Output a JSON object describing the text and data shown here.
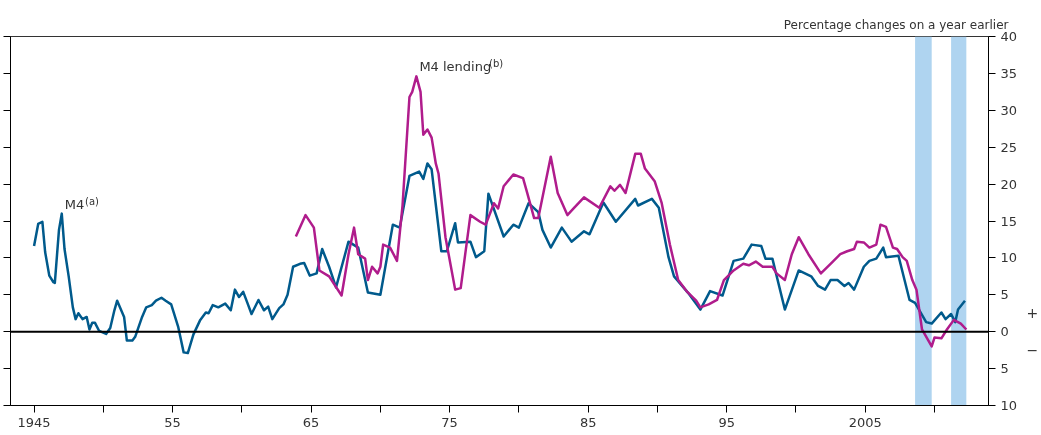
{
  "chart_data": {
    "type": "line",
    "ylabel": "Percentage changes on a year earlier",
    "annotations": [
      "+",
      "−"
    ],
    "xlim": [
      1943.3,
      2013.9
    ],
    "xticks": [
      {
        "value": 1945,
        "label": "1945"
      },
      {
        "value": 1950,
        "label": null
      },
      {
        "value": 1955,
        "label": "55"
      },
      {
        "value": 1960,
        "label": null
      },
      {
        "value": 1965,
        "label": "65"
      },
      {
        "value": 1970,
        "label": null
      },
      {
        "value": 1975,
        "label": "75"
      },
      {
        "value": 1980,
        "label": null
      },
      {
        "value": 1985,
        "label": "85"
      },
      {
        "value": 1990,
        "label": null
      },
      {
        "value": 1995,
        "label": "95"
      },
      {
        "value": 2000,
        "label": null
      },
      {
        "value": 2005,
        "label": "2005"
      },
      {
        "value": 2010,
        "label": null
      }
    ],
    "ylim": [
      -10,
      40
    ],
    "yticks": [
      {
        "value": -10,
        "label": "10"
      },
      {
        "value": -5,
        "label": "5"
      },
      0,
      5,
      10,
      15,
      20,
      25,
      30,
      35,
      40
    ],
    "grid": false,
    "legend": false,
    "marker": "none",
    "line_style": "solid",
    "ref_lines": [
      {
        "axis": "y",
        "value": 0,
        "color": "#000000"
      }
    ],
    "bands": [
      {
        "axis": "x",
        "from": 2008.6,
        "to": 2009.8,
        "color": "#afd4f0"
      },
      {
        "axis": "x",
        "from": 2011.2,
        "to": 2012.3,
        "color": "#afd4f0"
      }
    ],
    "series": [
      {
        "name": "M4$^{(a)}$",
        "color": "#005a8c",
        "x": [
          1945.0,
          1945.3,
          1945.6,
          1945.8,
          1946.1,
          1946.4,
          1946.5,
          1946.8,
          1947.0,
          1947.2,
          1947.5,
          1947.8,
          1948.0,
          1948.2,
          1948.5,
          1948.8,
          1949.0,
          1949.2,
          1949.4,
          1949.7,
          1950.2,
          1950.5,
          1950.8,
          1951.0,
          1951.5,
          1951.7,
          1952.1,
          1952.3,
          1952.8,
          1953.1,
          1953.5,
          1953.8,
          1954.2,
          1954.5,
          1954.9,
          1955.4,
          1955.8,
          1956.1,
          1956.5,
          1957.0,
          1957.4,
          1957.6,
          1957.9,
          1958.3,
          1958.8,
          1959.2,
          1959.5,
          1959.8,
          1960.1,
          1960.4,
          1960.7,
          1961.2,
          1961.6,
          1961.9,
          1962.2,
          1962.7,
          1963.0,
          1963.3,
          1963.7,
          1964.2,
          1964.5,
          1964.9,
          1965.4,
          1965.8,
          1966.3,
          1966.8,
          1967.7,
          1968.4,
          1969.1,
          1970.0,
          1970.9,
          1971.4,
          1972.1,
          1972.8,
          1973.1,
          1973.4,
          1973.7,
          1974.4,
          1974.8,
          1975.4,
          1975.6,
          1976.5,
          1976.9,
          1977.5,
          1977.8,
          1978.9,
          1979.6,
          1980.0,
          1980.7,
          1981.4,
          1981.7,
          1982.3,
          1983.1,
          1983.8,
          1984.7,
          1985.1,
          1986.1,
          1987.0,
          1988.4,
          1988.6,
          1989.6,
          1990.1,
          1990.8,
          1991.2,
          1992.2,
          1993.1,
          1993.8,
          1994.7,
          1995.5,
          1996.2,
          1996.8,
          1997.5,
          1997.8,
          1998.3,
          1999.2,
          2000.2,
          2001.1,
          2001.6,
          2002.1,
          2002.5,
          2003.0,
          2003.5,
          2003.8,
          2004.2,
          2004.9,
          2005.3,
          2005.8,
          2006.3,
          2006.5,
          2007.4,
          2008.2,
          2008.6,
          2009.4,
          2009.8,
          2010.5,
          2010.8,
          2011.2,
          2011.5,
          2011.7,
          2012.2
        ],
        "values": [
          11.6,
          14.6,
          14.9,
          10.8,
          7.6,
          6.7,
          6.6,
          13.8,
          16.0,
          11.2,
          7.5,
          3.3,
          1.7,
          2.5,
          1.7,
          2.0,
          0.3,
          1.2,
          1.2,
          0.1,
          -0.3,
          0.5,
          2.9,
          4.2,
          2.0,
          -1.2,
          -1.2,
          -0.7,
          2.0,
          3.3,
          3.6,
          4.2,
          4.6,
          4.2,
          3.7,
          0.7,
          -2.8,
          -2.9,
          -0.4,
          1.6,
          2.6,
          2.5,
          3.6,
          3.3,
          3.8,
          2.9,
          5.7,
          4.7,
          5.4,
          3.9,
          2.4,
          4.3,
          2.9,
          3.4,
          1.7,
          3.2,
          3.7,
          5.0,
          8.8,
          9.2,
          9.3,
          7.6,
          7.9,
          11.2,
          8.8,
          6.0,
          12.2,
          11.4,
          5.3,
          5.0,
          14.5,
          14.1,
          21.1,
          21.7,
          20.7,
          22.8,
          22.0,
          10.9,
          10.9,
          14.7,
          12.1,
          12.2,
          10.1,
          10.9,
          18.7,
          12.9,
          14.5,
          14.1,
          17.4,
          16.2,
          13.8,
          11.4,
          14.1,
          12.2,
          13.6,
          13.2,
          17.5,
          14.9,
          18.0,
          17.1,
          18.0,
          16.8,
          10.1,
          7.5,
          5.3,
          3.0,
          5.5,
          4.9,
          9.6,
          9.9,
          11.8,
          11.6,
          9.9,
          9.9,
          3.0,
          8.3,
          7.5,
          6.2,
          5.7,
          7.0,
          7.0,
          6.2,
          6.6,
          5.7,
          8.8,
          9.6,
          9.9,
          11.4,
          10.1,
          10.3,
          4.3,
          3.9,
          1.3,
          1.1,
          2.6,
          1.7,
          2.4,
          1.3,
          3.0,
          4.2
        ]
      },
      {
        "name": "M4 lending$^{(b)}$",
        "color": "#b01c8c",
        "x": [
          1963.9,
          1964.6,
          1965.2,
          1965.6,
          1966.3,
          1967.2,
          1967.7,
          1968.1,
          1968.4,
          1968.9,
          1969.1,
          1969.4,
          1969.8,
          1970.0,
          1970.2,
          1970.7,
          1971.2,
          1971.6,
          1972.1,
          1972.3,
          1972.6,
          1972.9,
          1973.1,
          1973.4,
          1973.7,
          1974.0,
          1974.2,
          1974.7,
          1975.4,
          1975.8,
          1976.5,
          1977.2,
          1977.6,
          1978.2,
          1978.5,
          1978.9,
          1979.6,
          1980.3,
          1980.6,
          1981.1,
          1981.4,
          1982.3,
          1982.8,
          1983.5,
          1984.0,
          1984.7,
          1985.8,
          1986.6,
          1986.9,
          1987.3,
          1987.7,
          1988.4,
          1988.8,
          1989.1,
          1989.8,
          1990.3,
          1990.9,
          1991.5,
          1992.1,
          1992.8,
          1993.1,
          1993.7,
          1994.3,
          1994.8,
          1995.5,
          1996.2,
          1996.6,
          1997.1,
          1997.6,
          1998.3,
          1998.6,
          1999.2,
          1999.7,
          2000.2,
          2000.9,
          2001.8,
          2002.5,
          2003.2,
          2003.7,
          2004.2,
          2004.4,
          2004.9,
          2005.3,
          2005.8,
          2006.1,
          2006.5,
          2007.0,
          2007.3,
          2007.7,
          2008.0,
          2008.4,
          2008.7,
          2009.1,
          2009.8,
          2010.0,
          2010.5,
          2010.9,
          2011.4,
          2011.9,
          2012.3
        ],
        "values": [
          12.9,
          15.8,
          14.1,
          8.3,
          7.5,
          4.9,
          10.5,
          14.1,
          10.5,
          9.9,
          7.0,
          8.8,
          7.9,
          8.8,
          11.8,
          11.4,
          9.6,
          17.1,
          31.8,
          32.5,
          34.6,
          32.5,
          26.7,
          27.4,
          26.3,
          22.8,
          21.4,
          12.8,
          5.7,
          5.9,
          15.8,
          14.9,
          14.5,
          17.4,
          16.7,
          19.7,
          21.3,
          20.8,
          18.8,
          15.4,
          15.4,
          23.7,
          18.8,
          15.8,
          16.8,
          18.2,
          16.8,
          19.7,
          19.1,
          19.9,
          18.8,
          24.1,
          24.1,
          22.1,
          20.4,
          17.5,
          11.8,
          7.0,
          5.5,
          4.2,
          3.3,
          3.7,
          4.3,
          7.0,
          8.3,
          9.2,
          9.0,
          9.5,
          8.8,
          8.8,
          7.9,
          7.0,
          10.5,
          12.8,
          10.5,
          7.9,
          9.2,
          10.5,
          10.9,
          11.2,
          12.2,
          12.1,
          11.4,
          11.8,
          14.5,
          14.2,
          11.4,
          11.2,
          10.1,
          9.6,
          7.0,
          5.7,
          0.3,
          -2.0,
          -0.8,
          -0.9,
          0.3,
          1.6,
          1.1,
          0.3
        ]
      }
    ]
  }
}
